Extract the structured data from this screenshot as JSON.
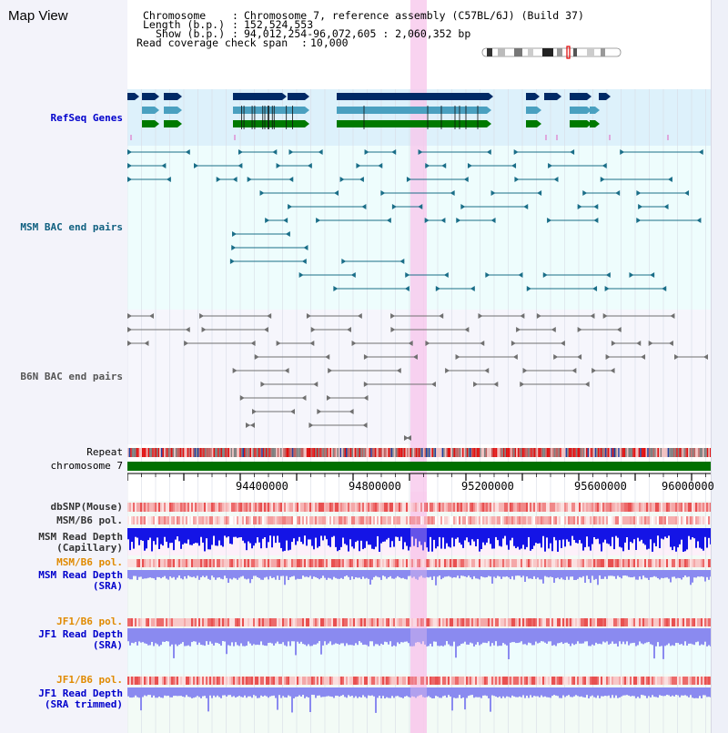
{
  "title": "Map View",
  "header": {
    "chromosome_label": "Chromosome",
    "chromosome_value": "Chromosome 7, reference assembly (C57BL/6J) (Build 37)",
    "length_label": "Length (b.p.)",
    "length_value": "152,524,553",
    "show_label": "Show (b.p.)",
    "show_value": "94,012,254-96,072,605 : 2,060,352 bp",
    "coverage_label": "Read coverage check span",
    "coverage_value": "10,000"
  },
  "tracks": {
    "refseq": "RefSeq Genes",
    "msm_bac": "MSM BAC end pairs",
    "b6n_bac": "B6N BAC end pairs",
    "repeat": "Repeat",
    "chromosome": "chromosome 7",
    "dbsnp": "dbSNP(Mouse)",
    "msm_b6_pol_1": "MSM/B6 pol.",
    "msm_read_depth_cap_1": "MSM Read Depth",
    "msm_read_depth_cap_2": "(Capillary)",
    "msm_b6_pol_2": "MSM/B6 pol.",
    "msm_read_depth_sra_1": "MSM Read Depth",
    "msm_read_depth_sra_2": "(SRA)",
    "jf1_b6_pol_1": "JF1/B6 pol.",
    "jf1_read_depth_sra_1": "JF1 Read Depth",
    "jf1_read_depth_sra_2": "(SRA)",
    "jf1_b6_pol_2": "JF1/B6 pol.",
    "jf1_read_depth_trim_1": "JF1 Read Depth",
    "jf1_read_depth_trim_2": "(SRA trimmed)"
  },
  "axis": {
    "ticks": [
      "94400000",
      "94800000",
      "95200000",
      "95600000",
      "96000000"
    ]
  },
  "colors": {
    "refseq_dark": "#002a66",
    "refseq_mid": "#4aa0c0",
    "refseq_green": "#007a00",
    "msm_bac": "#1a6e88",
    "b6n_bac": "#707070",
    "highlight": "#f8c8ec",
    "read_depth_blue": "#1414e6",
    "sra_blue": "#8a8af0",
    "snp_red": "#e03030",
    "chromosome_green": "#007000"
  }
}
